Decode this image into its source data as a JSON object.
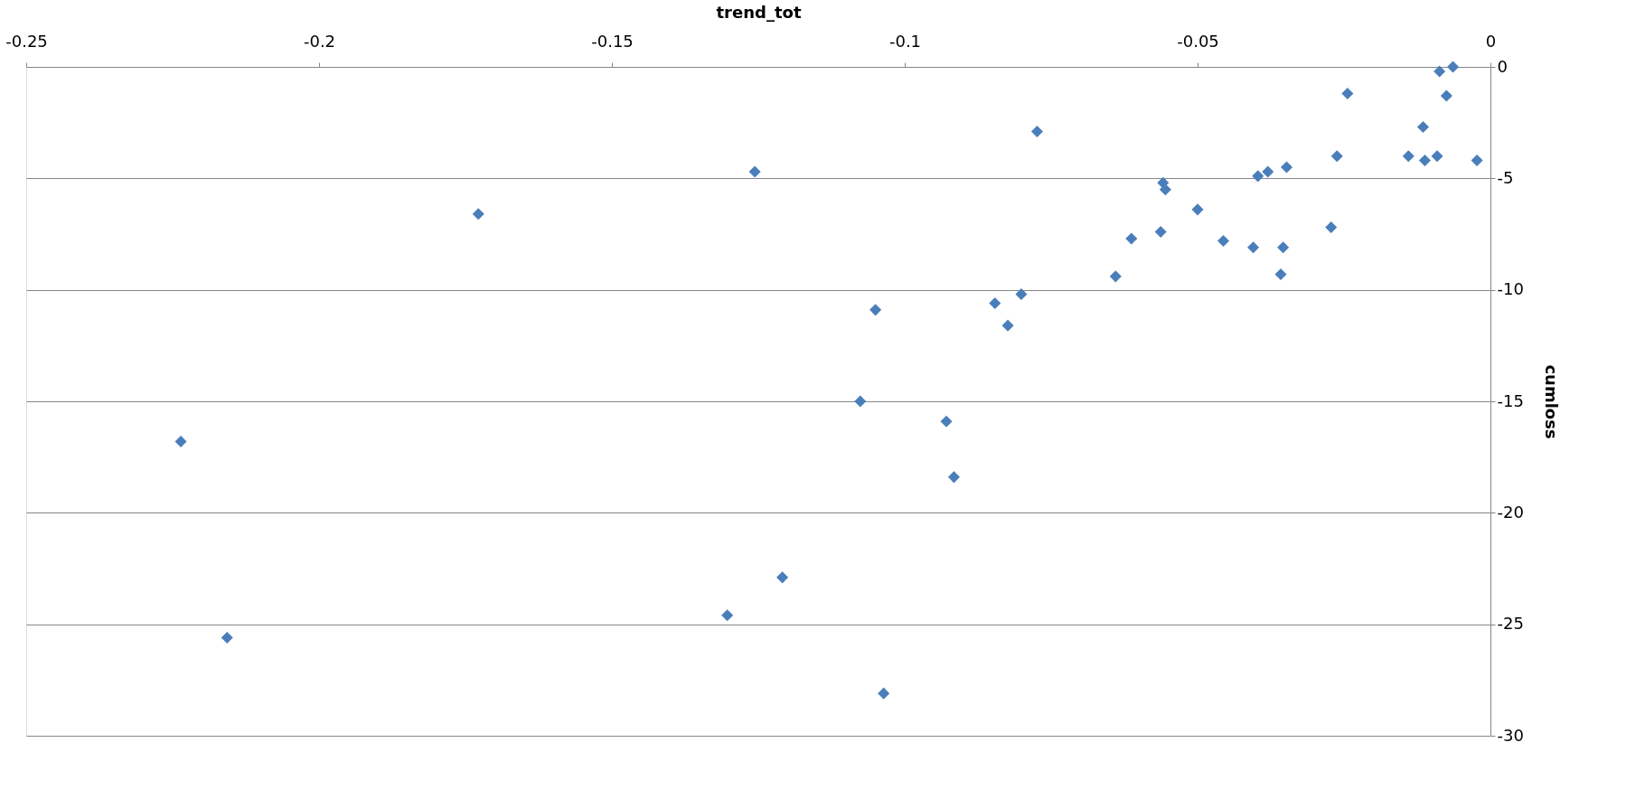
{
  "chart_data": {
    "type": "scatter",
    "xlabel": "trend_tot",
    "ylabel": "cumloss",
    "x": [
      -0.1728,
      -0.1256,
      -0.2236,
      -0.2157,
      -0.1303,
      -0.1209,
      -0.1076,
      -0.0929,
      -0.0916,
      -0.1036,
      -0.105,
      -0.0846,
      -0.0824,
      -0.0801,
      -0.0774,
      -0.064,
      -0.0613,
      -0.0563,
      -0.0559,
      -0.0555,
      -0.05,
      -0.0456,
      -0.0405,
      -0.0397,
      -0.038,
      -0.0354,
      -0.0358,
      -0.0348,
      -0.0272,
      -0.0262,
      -0.0244,
      -0.014,
      -0.0115,
      -0.0112,
      -0.0091,
      -0.0087,
      -0.0075,
      -0.0064,
      -0.0023
    ],
    "series": [
      {
        "color": "#4a7ebb",
        "values": [
          -6.6,
          -4.7,
          -16.8,
          -25.6,
          -24.6,
          -22.9,
          -15.0,
          -15.9,
          -18.4,
          -28.1,
          -10.9,
          -10.6,
          -11.6,
          -10.2,
          -2.9,
          -9.4,
          -7.7,
          -7.4,
          -5.2,
          -5.5,
          -6.4,
          -7.8,
          -8.1,
          -4.9,
          -4.7,
          -8.1,
          -9.3,
          -4.5,
          -7.2,
          -4.0,
          -1.2,
          -4.0,
          -2.7,
          -4.2,
          -4.0,
          -0.2,
          -1.3,
          0.0,
          -4.2
        ]
      }
    ],
    "xlim": [
      -0.25,
      0
    ],
    "xticks": [
      -0.25,
      -0.2,
      -0.15,
      -0.1,
      -0.05,
      0
    ],
    "ylim": [
      -30,
      0
    ],
    "yticks": [
      -30,
      -25,
      -20,
      -15,
      -10,
      -5,
      0
    ],
    "grid": "y",
    "marker": "diamond"
  }
}
